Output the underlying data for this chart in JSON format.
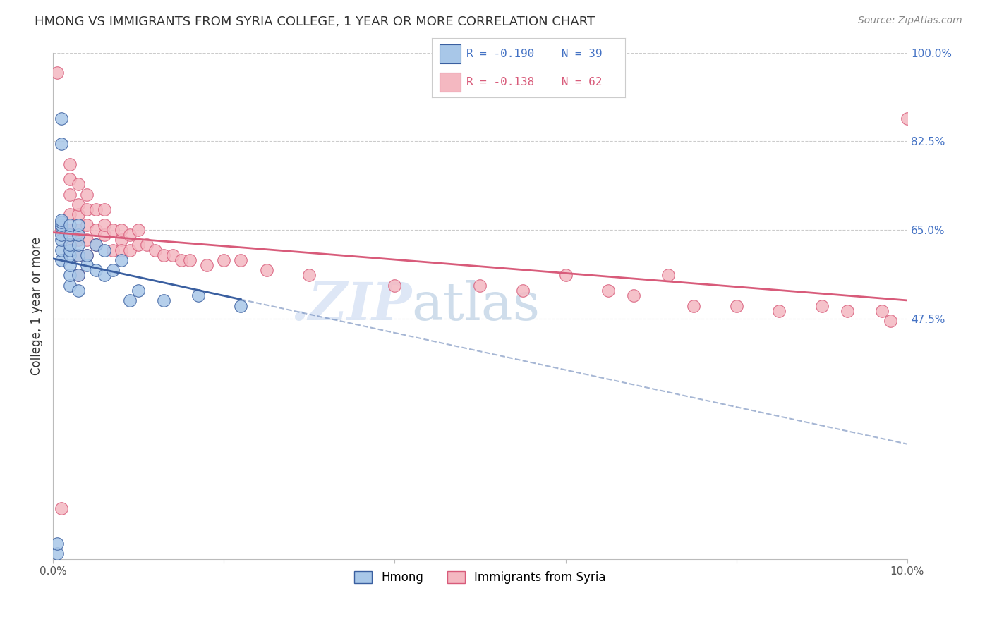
{
  "title": "HMONG VS IMMIGRANTS FROM SYRIA COLLEGE, 1 YEAR OR MORE CORRELATION CHART",
  "source": "Source: ZipAtlas.com",
  "ylabel": "College, 1 year or more",
  "xlim": [
    0.0,
    0.1
  ],
  "ylim": [
    0.0,
    1.0
  ],
  "x_tick_positions": [
    0.0,
    0.02,
    0.04,
    0.06,
    0.08,
    0.1
  ],
  "x_tick_labels": [
    "0.0%",
    "",
    "",
    "",
    "",
    "10.0%"
  ],
  "y_ticks_right": [
    0.0,
    0.475,
    0.65,
    0.825,
    1.0
  ],
  "y_tick_labels_right": [
    "",
    "47.5%",
    "65.0%",
    "82.5%",
    "100.0%"
  ],
  "watermark_zip": ".ZIP",
  "watermark_atlas": "atlas",
  "legend_r1": "R = -0.190",
  "legend_n1": "N = 39",
  "legend_r2": "R = -0.138",
  "legend_n2": "N = 62",
  "hmong_color": "#a8c7e8",
  "syria_color": "#f4b8c1",
  "trendline_hmong_color": "#3a5fa0",
  "trendline_syria_color": "#d85b7a",
  "background_color": "#ffffff",
  "grid_color": "#cccccc",
  "title_color": "#333333",
  "hmong_x": [
    0.0005,
    0.0005,
    0.001,
    0.001,
    0.001,
    0.001,
    0.001,
    0.001,
    0.001,
    0.001,
    0.001,
    0.001,
    0.002,
    0.002,
    0.002,
    0.002,
    0.002,
    0.002,
    0.002,
    0.002,
    0.003,
    0.003,
    0.003,
    0.003,
    0.003,
    0.003,
    0.004,
    0.004,
    0.005,
    0.005,
    0.006,
    0.006,
    0.007,
    0.008,
    0.009,
    0.01,
    0.013,
    0.017,
    0.022
  ],
  "hmong_y": [
    0.01,
    0.03,
    0.59,
    0.61,
    0.63,
    0.64,
    0.655,
    0.66,
    0.665,
    0.67,
    0.82,
    0.87,
    0.54,
    0.56,
    0.58,
    0.6,
    0.61,
    0.62,
    0.64,
    0.66,
    0.53,
    0.56,
    0.6,
    0.62,
    0.64,
    0.66,
    0.58,
    0.6,
    0.57,
    0.62,
    0.56,
    0.61,
    0.57,
    0.59,
    0.51,
    0.53,
    0.51,
    0.52,
    0.5
  ],
  "syria_x": [
    0.0005,
    0.001,
    0.001,
    0.002,
    0.002,
    0.002,
    0.002,
    0.002,
    0.002,
    0.003,
    0.003,
    0.003,
    0.003,
    0.003,
    0.003,
    0.003,
    0.004,
    0.004,
    0.004,
    0.004,
    0.004,
    0.005,
    0.005,
    0.005,
    0.006,
    0.006,
    0.006,
    0.007,
    0.007,
    0.008,
    0.008,
    0.008,
    0.009,
    0.009,
    0.01,
    0.01,
    0.011,
    0.012,
    0.013,
    0.014,
    0.015,
    0.016,
    0.018,
    0.02,
    0.022,
    0.025,
    0.03,
    0.04,
    0.05,
    0.055,
    0.06,
    0.065,
    0.068,
    0.072,
    0.075,
    0.08,
    0.085,
    0.09,
    0.093,
    0.097,
    0.098,
    0.1
  ],
  "syria_y": [
    0.96,
    0.1,
    0.65,
    0.62,
    0.65,
    0.68,
    0.72,
    0.75,
    0.78,
    0.56,
    0.6,
    0.63,
    0.65,
    0.68,
    0.7,
    0.74,
    0.6,
    0.63,
    0.66,
    0.69,
    0.72,
    0.62,
    0.65,
    0.69,
    0.64,
    0.66,
    0.69,
    0.61,
    0.65,
    0.63,
    0.61,
    0.65,
    0.61,
    0.64,
    0.62,
    0.65,
    0.62,
    0.61,
    0.6,
    0.6,
    0.59,
    0.59,
    0.58,
    0.59,
    0.59,
    0.57,
    0.56,
    0.54,
    0.54,
    0.53,
    0.56,
    0.53,
    0.52,
    0.56,
    0.5,
    0.5,
    0.49,
    0.5,
    0.49,
    0.49,
    0.47,
    0.87
  ]
}
